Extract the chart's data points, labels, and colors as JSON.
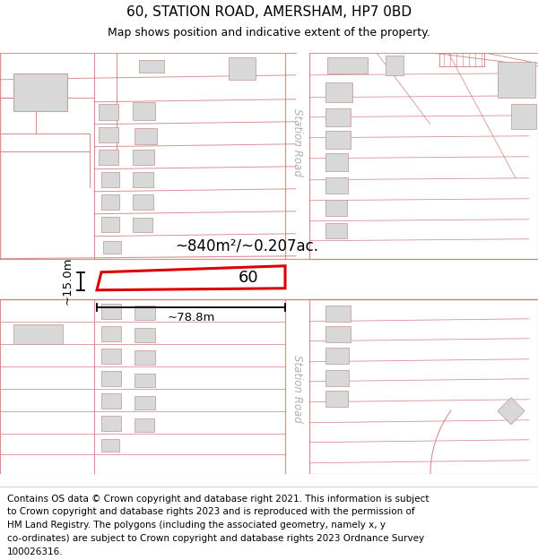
{
  "title": "60, STATION ROAD, AMERSHAM, HP7 0BD",
  "subtitle": "Map shows position and indicative extent of the property.",
  "footer_lines": [
    "Contains OS data © Crown copyright and database right 2021. This information is subject",
    "to Crown copyright and database rights 2023 and is reproduced with the permission of",
    "HM Land Registry. The polygons (including the associated geometry, namely x, y",
    "co-ordinates) are subject to Crown copyright and database rights 2023 Ordnance Survey",
    "100026316."
  ],
  "map_bg": "#ffffff",
  "line_color": "#e8a0a0",
  "line_color_mid": "#d08080",
  "building_color": "#d8d8d8",
  "building_edge": "#c8a0a0",
  "property_color": "#dd0000",
  "property_label": "60",
  "area_label": "~840m²/~0.207ac.",
  "dim_width_label": "~78.8m",
  "dim_height_label": "~15.0m",
  "station_road_label": "Station Road",
  "title_fontsize": 11,
  "subtitle_fontsize": 9,
  "footer_fontsize": 7.5
}
